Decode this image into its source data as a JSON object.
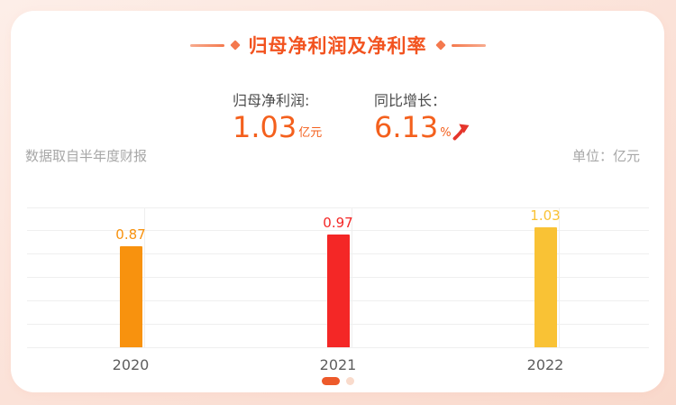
{
  "theme": {
    "bg_gradient": [
      "#fdeee8",
      "#f9d9cc"
    ],
    "card_bg": "#ffffff",
    "accent": "#f2531f",
    "decor_color": "#f4794e",
    "stat_value_color": "#f4601d",
    "arrow_color": "#e5352b",
    "muted_text": "#a7a7a7",
    "gridline_color": "#efefef"
  },
  "header": {
    "title": "归母净利润及净利率"
  },
  "stats": [
    {
      "label": "归母净利润:",
      "value": "1.03",
      "unit": "亿元"
    },
    {
      "label": "同比增长：",
      "value": "6.13",
      "unit": "%",
      "trend": "up"
    }
  ],
  "meta": {
    "source_note": "数据取自半年度财报",
    "unit_note": "单位：亿元"
  },
  "chart_data": {
    "type": "bar",
    "title": "归母净利润及净利率",
    "categories": [
      "2020",
      "2021",
      "2022"
    ],
    "values": [
      0.87,
      0.97,
      1.03
    ],
    "value_labels": [
      "0.87",
      "0.97",
      "1.03"
    ],
    "bar_colors": [
      "#f8920e",
      "#f42726",
      "#f9c235"
    ],
    "ylabel": "",
    "xlabel": "",
    "unit": "亿元",
    "ylim": [
      0,
      1.2
    ],
    "grid": true,
    "gridline_step": 0.2,
    "legend": "none"
  },
  "pagination": {
    "count": 2,
    "active_index": 0,
    "active_color": "#ed5a2b",
    "inactive_color": "#f9dbcc"
  }
}
